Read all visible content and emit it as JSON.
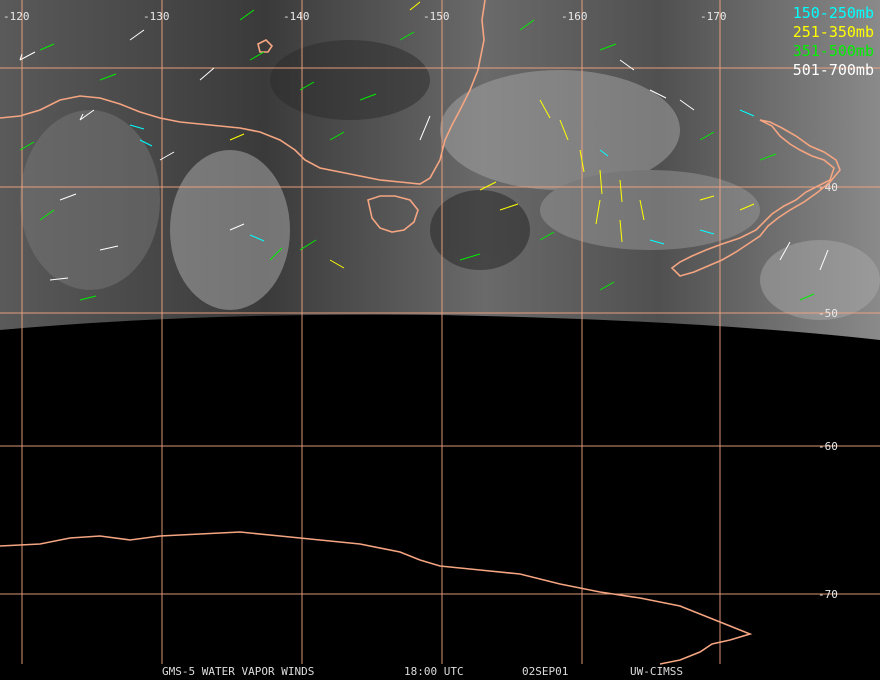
{
  "legend": [
    {
      "label": "150-250mb",
      "color": "#00ffff"
    },
    {
      "label": "251-350mb",
      "color": "#ffff00"
    },
    {
      "label": "351-500mb",
      "color": "#00ee00"
    },
    {
      "label": "501-700mb",
      "color": "#ffffff"
    }
  ],
  "footer": {
    "satellite": "GMS-5 WATER VAPOR WINDS",
    "time": "18:00 UTC",
    "date": "02SEP01",
    "source": "UW-CIMSS"
  },
  "grid": {
    "longitude_labels": [
      "-120",
      "-130",
      "-140",
      "-150",
      "-160",
      "-170"
    ],
    "latitude_labels": [
      "-40",
      "-50",
      "-60",
      "-70"
    ]
  },
  "colors": {
    "coastline": "#f4a582",
    "gridline": "#f4a582"
  }
}
